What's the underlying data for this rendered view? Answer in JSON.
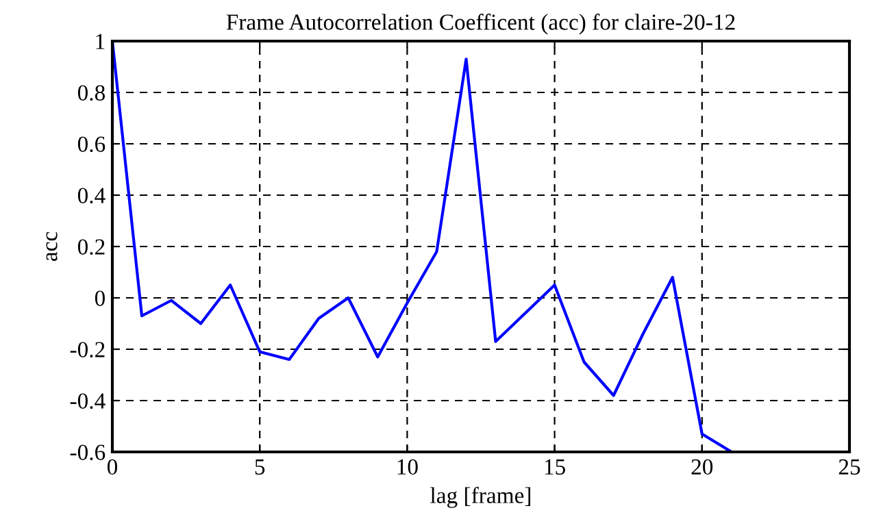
{
  "chart_data": {
    "type": "line",
    "title": "Frame Autocorrelation Coefficent (acc) for claire-20-12",
    "xlabel": "lag [frame]",
    "ylabel": "acc",
    "x": [
      0,
      1,
      2,
      3,
      4,
      5,
      6,
      7,
      8,
      9,
      10,
      11,
      12,
      13,
      14,
      15,
      16,
      17,
      18,
      19,
      20,
      21
    ],
    "series": [
      {
        "color": "#0000ff",
        "values": [
          1.0,
          -0.07,
          -0.01,
          -0.1,
          0.05,
          -0.21,
          -0.24,
          -0.08,
          0.0,
          -0.23,
          -0.02,
          0.18,
          0.93,
          -0.17,
          -0.06,
          0.05,
          -0.25,
          -0.38,
          -0.14,
          0.08,
          -0.53,
          -0.6
        ]
      }
    ],
    "xlim": [
      0,
      25
    ],
    "xticks": [
      0,
      5,
      10,
      15,
      20,
      25
    ],
    "ylim": [
      -0.6,
      1
    ],
    "yticks": [
      -0.6,
      -0.4,
      -0.2,
      0,
      0.2,
      0.4,
      0.6,
      0.8,
      1
    ],
    "grid": true,
    "line_style": "solid",
    "marker": "none",
    "legend": false
  }
}
